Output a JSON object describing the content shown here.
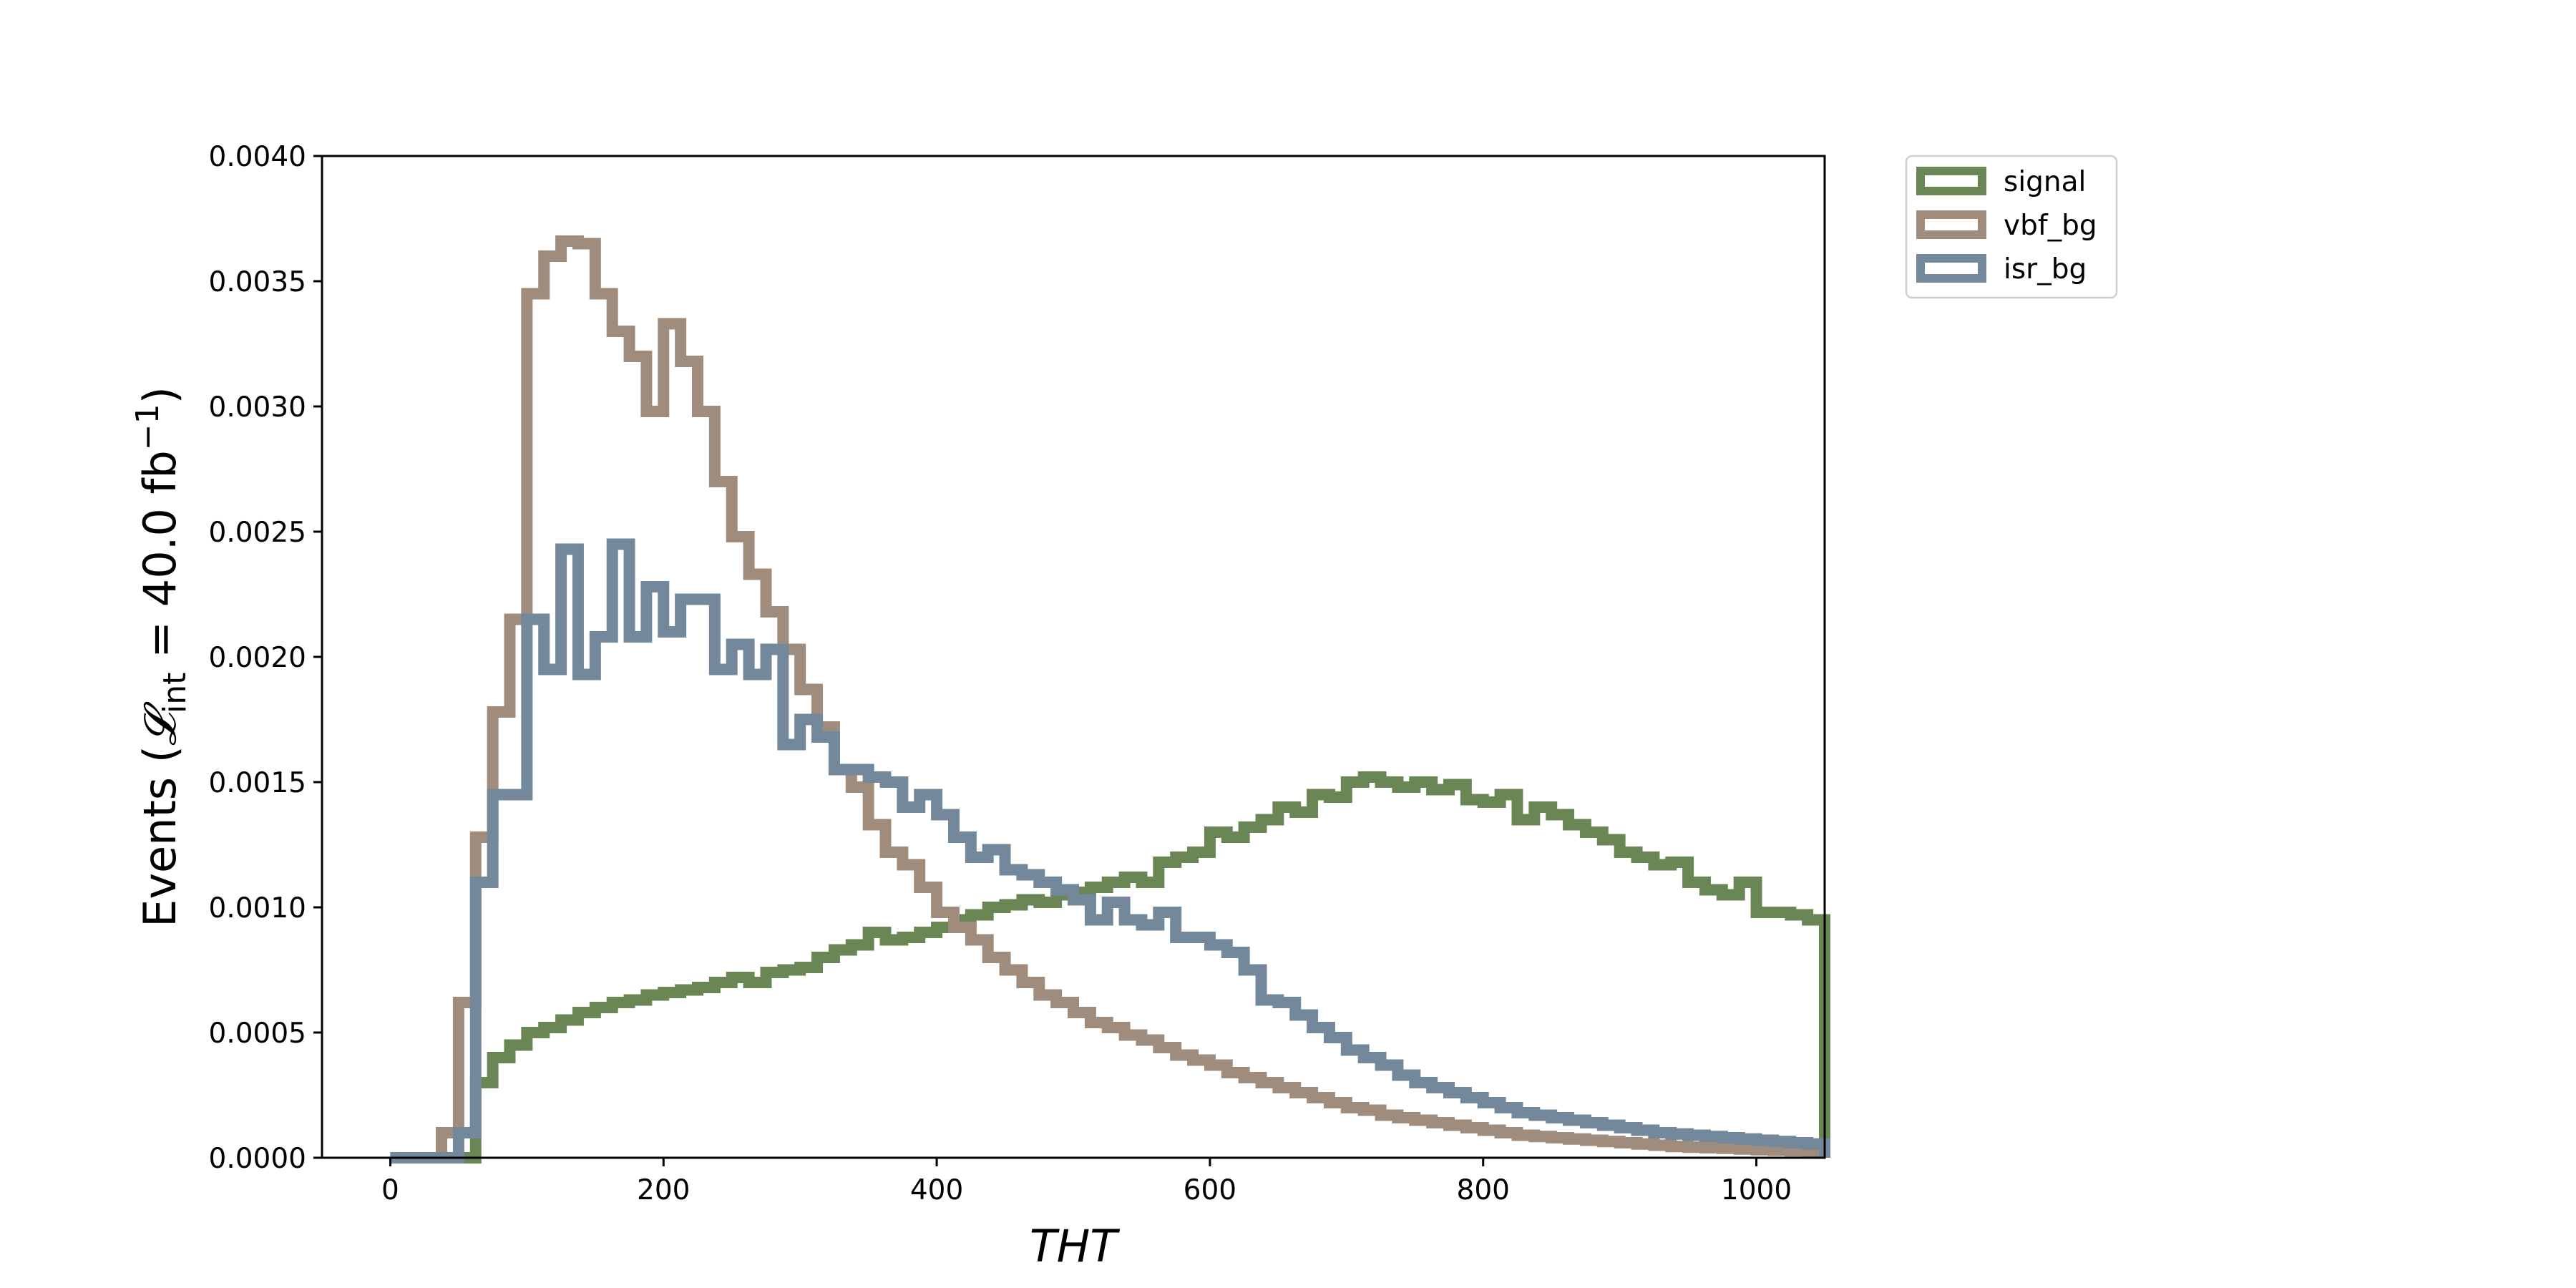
{
  "chart_data": {
    "type": "step-histogram",
    "xlabel": "THT",
    "ylabel": {
      "prefix": "Events (",
      "symbol": "𝓛",
      "subscript": "int",
      "middle": " = 40.0 fb",
      "superscript": "−1",
      "suffix": ")"
    },
    "xlim": [
      -50,
      1050
    ],
    "ylim": [
      0,
      0.004
    ],
    "xticks": [
      0,
      200,
      400,
      600,
      800,
      1000
    ],
    "xtick_labels": [
      "0",
      "200",
      "400",
      "600",
      "800",
      "1000"
    ],
    "yticks": [
      0,
      0.0005,
      0.001,
      0.0015,
      0.002,
      0.0025,
      0.003,
      0.0035,
      0.004
    ],
    "ytick_labels": [
      "0.0000",
      "0.0005",
      "0.0010",
      "0.0015",
      "0.0020",
      "0.0025",
      "0.0030",
      "0.0035",
      "0.0040"
    ],
    "bin_start": 0,
    "bin_width": 12.5,
    "legend_position": "upper-right-outside",
    "series": [
      {
        "name": "signal",
        "color": "#6b8655",
        "values": [
          0,
          0,
          0,
          0,
          0,
          0.0003,
          0.0004,
          0.00045,
          0.0005,
          0.00052,
          0.00055,
          0.00058,
          0.0006,
          0.00062,
          0.00063,
          0.00065,
          0.00066,
          0.00067,
          0.00068,
          0.0007,
          0.00072,
          0.0007,
          0.00074,
          0.00075,
          0.00076,
          0.0008,
          0.00083,
          0.00085,
          0.0009,
          0.00087,
          0.00088,
          0.0009,
          0.00092,
          0.00095,
          0.00097,
          0.001,
          0.00101,
          0.00103,
          0.00102,
          0.00105,
          0.00106,
          0.00108,
          0.0011,
          0.00112,
          0.0011,
          0.00118,
          0.0012,
          0.00122,
          0.0013,
          0.00128,
          0.00132,
          0.00135,
          0.0014,
          0.00138,
          0.00145,
          0.00144,
          0.0015,
          0.00152,
          0.0015,
          0.00148,
          0.0015,
          0.00147,
          0.00149,
          0.00143,
          0.00142,
          0.00145,
          0.00135,
          0.0014,
          0.00137,
          0.00133,
          0.0013,
          0.00127,
          0.00122,
          0.0012,
          0.00117,
          0.00118,
          0.0011,
          0.00107,
          0.00105,
          0.0011,
          0.00098,
          0.00098,
          0.00097,
          0.00095
        ]
      },
      {
        "name": "vbf_bg",
        "color": "#a08c7d",
        "values": [
          0,
          0,
          0,
          0.0001,
          0.00062,
          0.00128,
          0.00178,
          0.00215,
          0.00345,
          0.0036,
          0.00366,
          0.00365,
          0.00345,
          0.0033,
          0.0032,
          0.00298,
          0.00333,
          0.00318,
          0.00298,
          0.0027,
          0.00248,
          0.00233,
          0.00218,
          0.00203,
          0.00187,
          0.00172,
          0.00155,
          0.00148,
          0.00133,
          0.00122,
          0.00117,
          0.00108,
          0.00098,
          0.00092,
          0.00087,
          0.0008,
          0.00075,
          0.0007,
          0.00065,
          0.00062,
          0.00058,
          0.00054,
          0.00052,
          0.00049,
          0.00047,
          0.00044,
          0.00041,
          0.00039,
          0.00037,
          0.00034,
          0.00032,
          0.0003,
          0.00028,
          0.00026,
          0.00024,
          0.00022,
          0.0002,
          0.00019,
          0.00017,
          0.00016,
          0.00015,
          0.00014,
          0.00013,
          0.00012,
          0.00011,
          0.0001,
          9e-05,
          8.5e-05,
          8e-05,
          7.5e-05,
          7e-05,
          6.5e-05,
          6e-05,
          5.5e-05,
          5e-05,
          4.5e-05,
          4.2e-05,
          4e-05,
          3.8e-05,
          3.5e-05,
          3.2e-05,
          3e-05,
          2.8e-05,
          2.5e-05
        ]
      },
      {
        "name": "isr_bg",
        "color": "#73889a",
        "values": [
          0,
          0,
          0,
          0,
          0.0001,
          0.0011,
          0.00145,
          0.00145,
          0.00215,
          0.00195,
          0.00243,
          0.00193,
          0.00208,
          0.00245,
          0.00208,
          0.00228,
          0.0021,
          0.00223,
          0.00223,
          0.00195,
          0.00205,
          0.00193,
          0.00203,
          0.00165,
          0.00175,
          0.00168,
          0.00155,
          0.00155,
          0.00152,
          0.0015,
          0.0014,
          0.00145,
          0.00137,
          0.00128,
          0.0012,
          0.00123,
          0.00115,
          0.00113,
          0.0011,
          0.00107,
          0.00103,
          0.00095,
          0.00102,
          0.00095,
          0.00093,
          0.00098,
          0.00088,
          0.00088,
          0.00085,
          0.00082,
          0.00075,
          0.00063,
          0.00062,
          0.00057,
          0.00052,
          0.00048,
          0.00043,
          0.0004,
          0.00037,
          0.00033,
          0.0003,
          0.00028,
          0.00026,
          0.00024,
          0.00022,
          0.0002,
          0.00018,
          0.00017,
          0.00016,
          0.00015,
          0.00014,
          0.00013,
          0.00012,
          0.00011,
          0.0001,
          9.5e-05,
          9e-05,
          8.5e-05,
          8e-05,
          7.5e-05,
          7e-05,
          6.5e-05,
          6e-05,
          5.5e-05
        ]
      }
    ]
  }
}
